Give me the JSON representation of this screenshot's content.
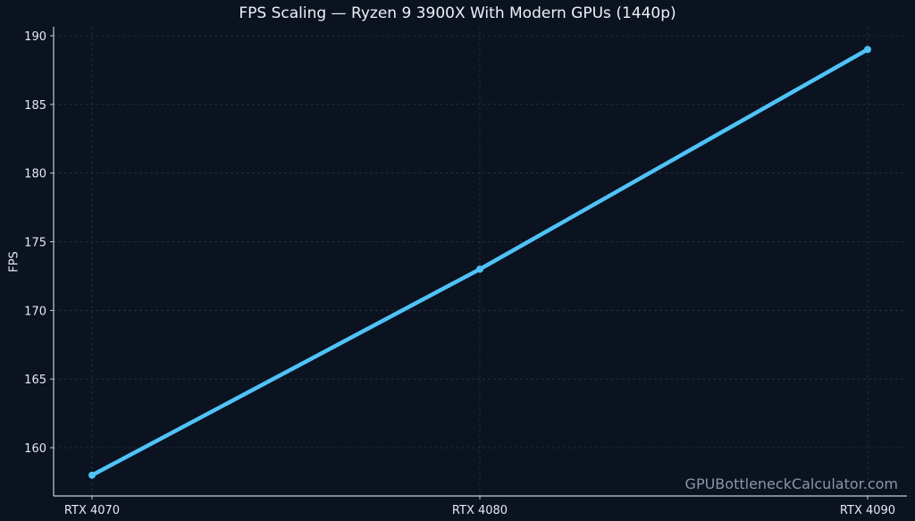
{
  "chart_data": {
    "type": "line",
    "title": "FPS Scaling — Ryzen 9 3900X With Modern GPUs (1440p)",
    "xlabel": "",
    "ylabel": "FPS",
    "categories": [
      "RTX 4070",
      "RTX 4080",
      "RTX 4090"
    ],
    "series": [
      {
        "name": "FPS",
        "values": [
          158,
          173,
          189
        ],
        "color": "#4fc3f7"
      }
    ],
    "yticks": [
      160,
      165,
      170,
      175,
      180,
      185,
      190
    ],
    "ylim": [
      156.5,
      190.5
    ],
    "grid": true,
    "legend": null,
    "annotations": [
      "GPUBottleneckCalculator.com"
    ]
  },
  "colors": {
    "background": "#0b1220",
    "line": "#4fc3f7",
    "grid": "#2a3344",
    "axis": "#c9ced6"
  },
  "watermark": "GPUBottleneckCalculator.com"
}
